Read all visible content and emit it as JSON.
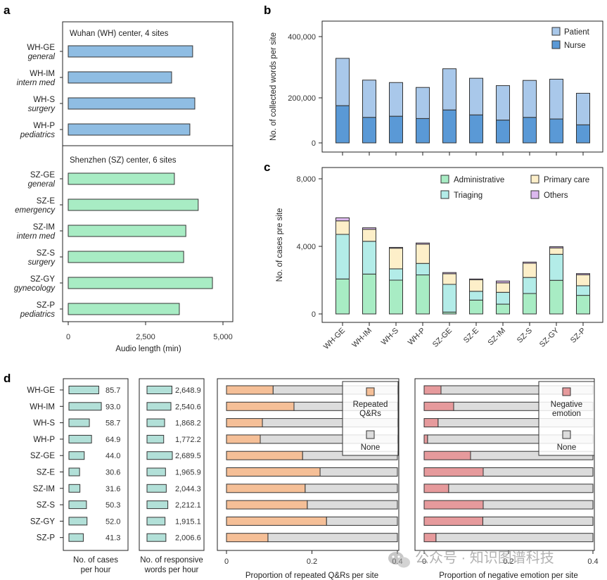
{
  "panel_labels": [
    "a",
    "b",
    "c",
    "d"
  ],
  "watermark": "公众号 · 知识图谱科技",
  "colors": {
    "wuhan": "#8fbde3",
    "shenzhen": "#a8ecc4",
    "patient": "#a9c8ea",
    "nurse": "#5a99d6",
    "administrative": "#a8ecc4",
    "triaging": "#b3ece8",
    "primary_care": "#fdefc9",
    "others": "#dcb8ee",
    "rate_bar": "#b2e0d8",
    "repeated": "#f5bf97",
    "negative": "#e69a9c",
    "none": "#dcdcdc"
  },
  "chart_data": [
    {
      "id": "a",
      "type": "bar",
      "orientation": "horizontal",
      "title": "",
      "xlabel": "Audio length (min)",
      "xlim": [
        0,
        5300
      ],
      "xticks": [
        "0",
        "2,500",
        "5,000"
      ],
      "xtick_values": [
        0,
        2500,
        5000
      ],
      "groups": [
        {
          "label": "Wuhan (WH) center, 4 sites",
          "sites": [
            {
              "code": "WH-GE",
              "dept": "general",
              "value": 4020
            },
            {
              "code": "WH-IM",
              "dept": "intern med",
              "value": 3340
            },
            {
              "code": "WH-S",
              "dept": "surgery",
              "value": 4090
            },
            {
              "code": "WH-P",
              "dept": "pediatrics",
              "value": 3930
            }
          ]
        },
        {
          "label": "Shenzhen (SZ) center, 6 sites",
          "sites": [
            {
              "code": "SZ-GE",
              "dept": "general",
              "value": 3430
            },
            {
              "code": "SZ-E",
              "dept": "emergency",
              "value": 4200
            },
            {
              "code": "SZ-IM",
              "dept": "intern med",
              "value": 3800
            },
            {
              "code": "SZ-S",
              "dept": "surgery",
              "value": 3730
            },
            {
              "code": "SZ-GY",
              "dept": "gynecology",
              "value": 4660
            },
            {
              "code": "SZ-P",
              "dept": "pediatrics",
              "value": 3590
            }
          ]
        }
      ]
    },
    {
      "id": "b",
      "type": "bar",
      "stacked": true,
      "ylabel": "No. of collected words per site",
      "yticks": [
        "0",
        "200,000",
        "400,000"
      ],
      "ytick_values": [
        0,
        200000,
        400000
      ],
      "categories": [
        "WH-GE",
        "WH-IM",
        "WH-S",
        "WH-P",
        "SZ-GE",
        "SZ-E",
        "SZ-IM",
        "SZ-S",
        "SZ-GY",
        "SZ-P"
      ],
      "series": [
        {
          "name": "Nurse",
          "values": [
            165000,
            113000,
            118000,
            108000,
            146000,
            124000,
            101000,
            113000,
            106000,
            80000
          ]
        },
        {
          "name": "Patient",
          "values": [
            164000,
            145000,
            132000,
            126000,
            149000,
            140000,
            139000,
            144000,
            155000,
            135000
          ]
        }
      ],
      "legend": [
        "Patient",
        "Nurse"
      ],
      "legend_position": "top-right"
    },
    {
      "id": "c",
      "type": "bar",
      "stacked": true,
      "ylabel": "No. of cases pre site",
      "ylim": [
        0,
        8700
      ],
      "yticks": [
        "0",
        "4,000",
        "8,000"
      ],
      "ytick_values": [
        0,
        4000,
        8000
      ],
      "categories": [
        "WH-GE",
        "WH-IM",
        "WH-S",
        "WH-P",
        "SZ-GE",
        "SZ-E",
        "SZ-IM",
        "SZ-S",
        "SZ-GY",
        "SZ-P"
      ],
      "series": [
        {
          "name": "Administrative",
          "values": [
            2070,
            2360,
            2000,
            2310,
            110,
            820,
            580,
            1210,
            1990,
            1100
          ]
        },
        {
          "name": "Triaging",
          "values": [
            2640,
            1940,
            670,
            680,
            1640,
            520,
            700,
            950,
            1540,
            570
          ]
        },
        {
          "name": "Primary care",
          "values": [
            800,
            710,
            1220,
            1140,
            630,
            680,
            560,
            840,
            380,
            650
          ]
        },
        {
          "name": "Others",
          "values": [
            180,
            90,
            50,
            70,
            70,
            50,
            110,
            70,
            70,
            70
          ]
        }
      ],
      "legend": [
        "Administrative",
        "Primary care",
        "Triaging",
        "Others"
      ],
      "legend_position": "top-right"
    },
    {
      "id": "d1",
      "type": "bar",
      "orientation": "horizontal",
      "xlabel": "No. of cases per hour",
      "categories": [
        "WH-GE",
        "WH-IM",
        "WH-S",
        "WH-P",
        "SZ-GE",
        "SZ-E",
        "SZ-IM",
        "SZ-S",
        "SZ-GY",
        "SZ-P"
      ],
      "values": [
        85.7,
        93.0,
        58.7,
        64.9,
        44.0,
        30.6,
        31.6,
        50.3,
        52.0,
        41.3
      ],
      "labels": [
        "85.7",
        "93.0",
        "58.7",
        "64.9",
        "44.0",
        "30.6",
        "31.6",
        "50.3",
        "52.0",
        "41.3"
      ]
    },
    {
      "id": "d2",
      "type": "bar",
      "orientation": "horizontal",
      "xlabel": "No. of responsive words per hour",
      "categories": [
        "WH-GE",
        "WH-IM",
        "WH-S",
        "WH-P",
        "SZ-GE",
        "SZ-E",
        "SZ-IM",
        "SZ-S",
        "SZ-GY",
        "SZ-P"
      ],
      "values": [
        2648.9,
        2540.6,
        1868.2,
        1772.2,
        2689.5,
        1965.9,
        2044.3,
        2212.1,
        1915.1,
        2006.6
      ],
      "labels": [
        "2,648.9",
        "2,540.6",
        "1,868.2",
        "1,772.2",
        "2,689.5",
        "1,965.9",
        "2,044.3",
        "2,212.1",
        "1,915.1",
        "2,006.6"
      ]
    },
    {
      "id": "d3",
      "type": "bar",
      "orientation": "horizontal",
      "stacked": true,
      "xlabel": "Proportion of repeated Q&Rs per site",
      "xlim": [
        0,
        0.4
      ],
      "xticks": [
        "0",
        "0.2",
        "0.4"
      ],
      "xtick_values": [
        0,
        0.2,
        0.4
      ],
      "categories": [
        "WH-GE",
        "WH-IM",
        "WH-S",
        "WH-P",
        "SZ-GE",
        "SZ-E",
        "SZ-IM",
        "SZ-S",
        "SZ-GY",
        "SZ-P"
      ],
      "values": [
        0.109,
        0.158,
        0.084,
        0.079,
        0.178,
        0.219,
        0.184,
        0.189,
        0.234,
        0.097
      ],
      "legend": [
        "Repeated Q&Rs",
        "None"
      ],
      "legend_position": "top-right"
    },
    {
      "id": "d4",
      "type": "bar",
      "orientation": "horizontal",
      "stacked": true,
      "xlabel": "Proportion of negative emotion per site",
      "xlim": [
        0,
        0.4
      ],
      "xticks": [
        "0",
        "0.2",
        "0.4"
      ],
      "xtick_values": [
        0,
        0.2,
        0.4
      ],
      "categories": [
        "WH-GE",
        "WH-IM",
        "WH-S",
        "WH-P",
        "SZ-GE",
        "SZ-E",
        "SZ-IM",
        "SZ-S",
        "SZ-GY",
        "SZ-P"
      ],
      "values": [
        0.04,
        0.07,
        0.033,
        0.008,
        0.11,
        0.14,
        0.058,
        0.14,
        0.139,
        0.028
      ],
      "legend": [
        "Negative emotion",
        "None"
      ],
      "legend_position": "top-right"
    }
  ]
}
